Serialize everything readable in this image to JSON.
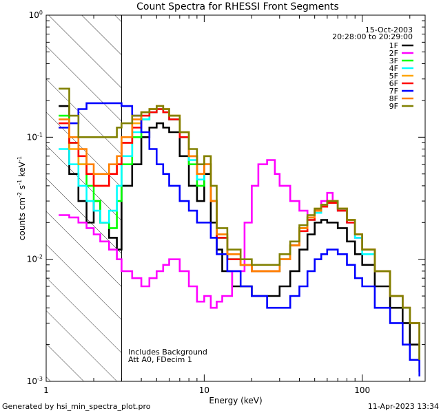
{
  "chart_data": {
    "type": "line",
    "title": "Count Spectra for RHESSI Front Segments",
    "xlabel": "Energy (keV)",
    "ylabel": "counts cm^-2 s^-1 keV^-1",
    "ylabel_parts": {
      "base": "counts cm",
      "exp1": "-2",
      "mid1": " s",
      "exp2": "-1",
      "mid2": " keV",
      "exp3": "-1"
    },
    "x_scale": "log",
    "y_scale": "log",
    "xlim": [
      1,
      250
    ],
    "ylim": [
      0.001,
      1
    ],
    "x_ticks": [
      {
        "value": 1,
        "label": "1"
      },
      {
        "value": 10,
        "label": "10"
      },
      {
        "value": 100,
        "label": "100"
      }
    ],
    "y_ticks": [
      {
        "value": 1,
        "base": "10",
        "exp": "0"
      },
      {
        "value": 0.1,
        "base": "10",
        "exp": "-1"
      },
      {
        "value": 0.01,
        "base": "10",
        "exp": "-2"
      },
      {
        "value": 0.001,
        "base": "10",
        "exp": "-3"
      }
    ],
    "hatched_region": {
      "x_from": 1,
      "x_to": 3
    },
    "date": "15-Oct-2003",
    "time_range": "20:28:00 to 20:29:00",
    "annotations": [
      "Includes Background",
      "Att A0, FDecim 1"
    ],
    "footer_left": "Generated by hsi_min_spectra_plot.pro",
    "footer_right": "11-Apr-2023 13:34",
    "series": [
      {
        "name": "1F",
        "color": "#000000",
        "x": [
          1.2,
          1.4,
          1.6,
          1.8,
          2.0,
          2.2,
          2.5,
          2.8,
          3.0,
          3.5,
          4.0,
          4.5,
          5.0,
          5.5,
          6.0,
          7.0,
          8.0,
          9.0,
          10.0,
          11.0,
          12.0,
          13.0,
          15.0,
          18.0,
          20.0,
          25.0,
          30.0,
          35.0,
          40.0,
          45.0,
          50.0,
          55.0,
          60.0,
          70.0,
          80.0,
          90.0,
          100.0,
          120.0,
          150.0,
          180.0,
          200.0,
          230.0
        ],
        "y": [
          0.18,
          0.05,
          0.03,
          0.02,
          0.03,
          0.02,
          0.015,
          0.012,
          0.04,
          0.06,
          0.1,
          0.12,
          0.13,
          0.12,
          0.11,
          0.07,
          0.04,
          0.03,
          0.05,
          0.02,
          0.012,
          0.008,
          0.006,
          0.006,
          0.005,
          0.005,
          0.006,
          0.008,
          0.012,
          0.016,
          0.02,
          0.021,
          0.02,
          0.018,
          0.014,
          0.011,
          0.009,
          0.006,
          0.004,
          0.003,
          0.002,
          0.0012
        ]
      },
      {
        "name": "2F",
        "color": "#ff00ff",
        "x": [
          1.2,
          1.4,
          1.6,
          1.8,
          2.0,
          2.2,
          2.5,
          2.8,
          3.0,
          3.5,
          4.0,
          4.5,
          5.0,
          5.5,
          6.0,
          7.0,
          8.0,
          9.0,
          10.0,
          11.0,
          12.0,
          13.0,
          15.0,
          18.0,
          20.0,
          22.0,
          25.0,
          28.0,
          30.0,
          35.0,
          40.0,
          45.0,
          50.0,
          55.0,
          60.0,
          65.0,
          70.0,
          80.0,
          90.0,
          100.0,
          120.0,
          150.0,
          180.0,
          200.0,
          230.0
        ],
        "y": [
          0.023,
          0.022,
          0.02,
          0.018,
          0.016,
          0.014,
          0.012,
          0.01,
          0.008,
          0.007,
          0.006,
          0.007,
          0.008,
          0.009,
          0.01,
          0.008,
          0.006,
          0.0045,
          0.005,
          0.004,
          0.0045,
          0.005,
          0.008,
          0.02,
          0.04,
          0.06,
          0.065,
          0.05,
          0.04,
          0.03,
          0.025,
          0.022,
          0.025,
          0.03,
          0.035,
          0.03,
          0.025,
          0.02,
          0.015,
          0.012,
          0.008,
          0.005,
          0.004,
          0.003,
          0.002
        ]
      },
      {
        "name": "3F",
        "color": "#00ff00",
        "x": [
          1.2,
          1.4,
          1.6,
          1.8,
          2.0,
          2.2,
          2.5,
          2.8,
          3.0,
          3.5,
          4.0,
          4.5,
          5.0,
          5.5,
          6.0,
          7.0,
          8.0,
          9.0,
          10.0,
          11.0,
          12.0,
          14.0,
          17.0,
          20.0,
          25.0,
          30.0,
          35.0,
          40.0,
          45.0,
          50.0,
          55.0,
          60.0,
          70.0,
          80.0,
          90.0,
          100.0,
          120.0,
          150.0,
          180.0,
          200.0,
          230.0
        ],
        "y": [
          0.15,
          0.09,
          0.06,
          0.04,
          0.03,
          0.02,
          0.018,
          0.03,
          0.06,
          0.1,
          0.14,
          0.16,
          0.17,
          0.16,
          0.14,
          0.1,
          0.06,
          0.04,
          0.06,
          0.03,
          0.015,
          0.01,
          0.009,
          0.008,
          0.008,
          0.01,
          0.013,
          0.018,
          0.022,
          0.025,
          0.028,
          0.03,
          0.026,
          0.021,
          0.016,
          0.012,
          0.008,
          0.005,
          0.004,
          0.003,
          0.0015
        ]
      },
      {
        "name": "4F",
        "color": "#00ffff",
        "x": [
          1.2,
          1.4,
          1.6,
          1.8,
          2.0,
          2.2,
          2.5,
          2.8,
          3.0,
          3.5,
          4.0,
          4.5,
          5.0,
          5.5,
          6.0,
          7.0,
          8.0,
          9.0,
          10.0,
          11.0,
          12.0,
          14.0,
          17.0,
          20.0,
          25.0,
          30.0,
          35.0,
          40.0,
          45.0,
          50.0,
          55.0,
          60.0,
          70.0,
          80.0,
          90.0,
          100.0,
          120.0,
          150.0,
          180.0,
          200.0,
          230.0
        ],
        "y": [
          0.08,
          0.06,
          0.04,
          0.03,
          0.025,
          0.02,
          0.025,
          0.04,
          0.07,
          0.11,
          0.14,
          0.16,
          0.17,
          0.16,
          0.14,
          0.1,
          0.065,
          0.045,
          0.06,
          0.03,
          0.015,
          0.01,
          0.009,
          0.008,
          0.008,
          0.01,
          0.013,
          0.017,
          0.021,
          0.024,
          0.027,
          0.029,
          0.025,
          0.02,
          0.015,
          0.011,
          0.008,
          0.005,
          0.004,
          0.003,
          0.0015
        ]
      },
      {
        "name": "5F",
        "color": "#ffa500",
        "x": [
          1.2,
          1.4,
          1.6,
          1.8,
          2.0,
          2.2,
          2.5,
          2.8,
          3.0,
          3.5,
          4.0,
          4.5,
          5.0,
          5.5,
          6.0,
          7.0,
          8.0,
          9.0,
          10.0,
          11.0,
          12.0,
          14.0,
          17.0,
          20.0,
          25.0,
          30.0,
          35.0,
          40.0,
          45.0,
          50.0,
          55.0,
          60.0,
          70.0,
          80.0,
          90.0,
          100.0,
          120.0,
          150.0,
          180.0,
          200.0,
          230.0
        ],
        "y": [
          0.12,
          0.08,
          0.06,
          0.05,
          0.04,
          0.04,
          0.05,
          0.06,
          0.09,
          0.13,
          0.16,
          0.17,
          0.18,
          0.17,
          0.15,
          0.11,
          0.07,
          0.05,
          0.07,
          0.03,
          0.016,
          0.011,
          0.009,
          0.008,
          0.008,
          0.01,
          0.013,
          0.018,
          0.022,
          0.026,
          0.028,
          0.03,
          0.026,
          0.021,
          0.016,
          0.012,
          0.008,
          0.005,
          0.004,
          0.003,
          0.0015
        ]
      },
      {
        "name": "6F",
        "color": "#ff0000",
        "x": [
          1.2,
          1.4,
          1.6,
          1.8,
          2.0,
          2.2,
          2.5,
          2.8,
          3.0,
          3.5,
          4.0,
          4.5,
          5.0,
          5.5,
          6.0,
          7.0,
          8.0,
          9.0,
          10.0,
          11.0,
          12.0,
          14.0,
          17.0,
          20.0,
          25.0,
          30.0,
          35.0,
          40.0,
          45.0,
          50.0,
          55.0,
          60.0,
          70.0,
          80.0,
          90.0,
          100.0,
          120.0,
          150.0,
          180.0,
          200.0,
          230.0
        ],
        "y": [
          0.13,
          0.09,
          0.07,
          0.05,
          0.04,
          0.04,
          0.05,
          0.06,
          0.09,
          0.12,
          0.15,
          0.16,
          0.17,
          0.16,
          0.14,
          0.1,
          0.07,
          0.05,
          0.06,
          0.03,
          0.015,
          0.01,
          0.009,
          0.008,
          0.008,
          0.01,
          0.013,
          0.017,
          0.021,
          0.025,
          0.027,
          0.029,
          0.025,
          0.02,
          0.016,
          0.012,
          0.008,
          0.005,
          0.004,
          0.003,
          0.0015
        ]
      },
      {
        "name": "7F",
        "color": "#0000ff",
        "x": [
          1.2,
          1.4,
          1.6,
          1.8,
          2.0,
          2.2,
          2.5,
          2.8,
          3.0,
          3.5,
          4.0,
          4.5,
          5.0,
          5.5,
          6.0,
          7.0,
          8.0,
          9.0,
          10.0,
          11.0,
          12.0,
          14.0,
          17.0,
          20.0,
          25.0,
          30.0,
          35.0,
          40.0,
          45.0,
          50.0,
          55.0,
          60.0,
          70.0,
          80.0,
          90.0,
          100.0,
          120.0,
          150.0,
          180.0,
          200.0,
          230.0
        ],
        "y": [
          0.12,
          0.13,
          0.17,
          0.19,
          0.19,
          0.19,
          0.19,
          0.19,
          0.18,
          0.15,
          0.11,
          0.08,
          0.06,
          0.05,
          0.04,
          0.03,
          0.025,
          0.02,
          0.02,
          0.015,
          0.011,
          0.008,
          0.006,
          0.005,
          0.004,
          0.004,
          0.005,
          0.006,
          0.008,
          0.01,
          0.011,
          0.012,
          0.011,
          0.009,
          0.007,
          0.006,
          0.004,
          0.003,
          0.002,
          0.0015,
          0.0011
        ]
      },
      {
        "name": "8F",
        "color": "#ff8000",
        "x": [
          1.2,
          1.4,
          1.6,
          1.8,
          2.0,
          2.2,
          2.5,
          2.8,
          3.0,
          3.5,
          4.0,
          4.5,
          5.0,
          5.5,
          6.0,
          7.0,
          8.0,
          9.0,
          10.0,
          11.0,
          12.0,
          14.0,
          17.0,
          20.0,
          25.0,
          30.0,
          35.0,
          40.0,
          45.0,
          50.0,
          55.0,
          60.0,
          70.0,
          80.0,
          90.0,
          100.0,
          120.0,
          150.0,
          180.0,
          200.0,
          230.0
        ],
        "y": [
          0.14,
          0.1,
          0.08,
          0.06,
          0.05,
          0.05,
          0.06,
          0.07,
          0.1,
          0.14,
          0.16,
          0.17,
          0.18,
          0.17,
          0.15,
          0.11,
          0.07,
          0.05,
          0.06,
          0.03,
          0.016,
          0.011,
          0.009,
          0.008,
          0.008,
          0.01,
          0.013,
          0.018,
          0.022,
          0.025,
          0.028,
          0.03,
          0.026,
          0.021,
          0.016,
          0.012,
          0.008,
          0.005,
          0.004,
          0.003,
          0.0015
        ]
      },
      {
        "name": "9F",
        "color": "#808000",
        "x": [
          1.2,
          1.4,
          1.6,
          1.8,
          2.0,
          2.2,
          2.5,
          2.8,
          3.0,
          3.5,
          4.0,
          4.5,
          5.0,
          5.5,
          6.0,
          7.0,
          8.0,
          9.0,
          10.0,
          11.0,
          12.0,
          14.0,
          17.0,
          20.0,
          25.0,
          30.0,
          35.0,
          40.0,
          45.0,
          50.0,
          55.0,
          60.0,
          70.0,
          80.0,
          90.0,
          100.0,
          120.0,
          150.0,
          180.0,
          200.0,
          230.0
        ],
        "y": [
          0.25,
          0.15,
          0.1,
          0.1,
          0.1,
          0.1,
          0.1,
          0.12,
          0.13,
          0.15,
          0.16,
          0.17,
          0.18,
          0.17,
          0.15,
          0.11,
          0.08,
          0.06,
          0.07,
          0.04,
          0.018,
          0.012,
          0.01,
          0.009,
          0.009,
          0.011,
          0.014,
          0.019,
          0.023,
          0.026,
          0.028,
          0.03,
          0.026,
          0.021,
          0.016,
          0.012,
          0.008,
          0.005,
          0.004,
          0.003,
          0.0015
        ]
      }
    ]
  }
}
